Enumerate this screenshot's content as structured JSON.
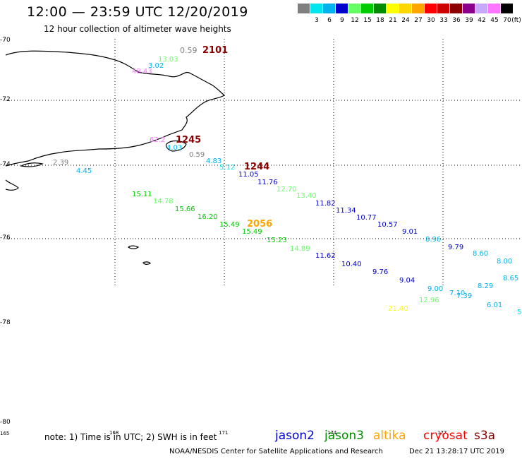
{
  "title": "12:00 — 23:59 UTC 12/20/2019",
  "subtitle": "12 hour collection of altimeter wave heights",
  "scale": {
    "unit": "(ft)",
    "bins": [
      {
        "label": "",
        "color": "#808080"
      },
      {
        "label": "3",
        "color": "#00e5ee"
      },
      {
        "label": "6",
        "color": "#00b2ee"
      },
      {
        "label": "9",
        "color": "#0000cd"
      },
      {
        "label": "12",
        "color": "#66ff66"
      },
      {
        "label": "15",
        "color": "#00cd00"
      },
      {
        "label": "18",
        "color": "#008b00"
      },
      {
        "label": "21",
        "color": "#ffff00"
      },
      {
        "label": "24",
        "color": "#ffd700"
      },
      {
        "label": "27",
        "color": "#ffa500"
      },
      {
        "label": "30",
        "color": "#ff0000"
      },
      {
        "label": "33",
        "color": "#cd0000"
      },
      {
        "label": "36",
        "color": "#8b0000"
      },
      {
        "label": "39",
        "color": "#8b008b"
      },
      {
        "label": "42",
        "color": "#c8a8f8"
      },
      {
        "label": "45",
        "color": "#ff77ff"
      },
      {
        "label": "70",
        "color": "#000000"
      }
    ]
  },
  "axes": {
    "lat_labels": [
      "-70",
      "-72",
      "-74",
      "-76",
      "-78",
      "-80"
    ],
    "lon_labels": [
      "165",
      "168",
      "171",
      "174",
      "177"
    ]
  },
  "observations": [
    {
      "text": "0.59",
      "color": "#808080"
    },
    {
      "text": "2101",
      "color": "#8b0000"
    },
    {
      "text": "13.03",
      "color": "#66ff66"
    },
    {
      "text": "3.02",
      "color": "#00b2ee"
    },
    {
      "text": "48.43",
      "color": "#ff77ff"
    },
    {
      "text": "62.2",
      "color": "#ff77ff"
    },
    {
      "text": "1245",
      "color": "#8b0000"
    },
    {
      "text": "4.03",
      "color": "#00b2ee"
    },
    {
      "text": "0.59",
      "color": "#808080"
    },
    {
      "text": "2.39",
      "color": "#808080"
    },
    {
      "text": "4.45",
      "color": "#00b2ee"
    },
    {
      "text": "4.83",
      "color": "#00b2ee"
    },
    {
      "text": "5.12",
      "color": "#00e5ee"
    },
    {
      "text": "1244",
      "color": "#8b0000"
    },
    {
      "text": "11.05",
      "color": "#0000cd"
    },
    {
      "text": "11.76",
      "color": "#0000cd"
    },
    {
      "text": "12.70",
      "color": "#66ff66"
    },
    {
      "text": "13.40",
      "color": "#66ff66"
    },
    {
      "text": "11.82",
      "color": "#0000cd"
    },
    {
      "text": "11.34",
      "color": "#0000cd"
    },
    {
      "text": "10.77",
      "color": "#0000cd"
    },
    {
      "text": "10.57",
      "color": "#0000cd"
    },
    {
      "text": "9.01",
      "color": "#0000cd"
    },
    {
      "text": "8.96",
      "color": "#00b2ee"
    },
    {
      "text": "9.79",
      "color": "#0000cd"
    },
    {
      "text": "8.60",
      "color": "#00b2ee"
    },
    {
      "text": "8.00",
      "color": "#00b2ee"
    },
    {
      "text": "8.65",
      "color": "#00b2ee"
    },
    {
      "text": "15.11",
      "color": "#00cd00"
    },
    {
      "text": "14.78",
      "color": "#66ff66"
    },
    {
      "text": "15.66",
      "color": "#00cd00"
    },
    {
      "text": "16.20",
      "color": "#00cd00"
    },
    {
      "text": "15.49",
      "color": "#00cd00"
    },
    {
      "text": "2056",
      "color": "#ffa500"
    },
    {
      "text": "15.49",
      "color": "#00cd00"
    },
    {
      "text": "15.23",
      "color": "#00cd00"
    },
    {
      "text": "14.89",
      "color": "#66ff66"
    },
    {
      "text": "11.62",
      "color": "#0000cd"
    },
    {
      "text": "10.40",
      "color": "#0000cd"
    },
    {
      "text": "9.76",
      "color": "#0000cd"
    },
    {
      "text": "9.04",
      "color": "#0000cd"
    },
    {
      "text": "9.00",
      "color": "#00b2ee"
    },
    {
      "text": "7.10",
      "color": "#00b2ee"
    },
    {
      "text": "7.39",
      "color": "#00b2ee"
    },
    {
      "text": "8.29",
      "color": "#00b2ee"
    },
    {
      "text": "6.01",
      "color": "#00b2ee"
    },
    {
      "text": "5",
      "color": "#00e5ee"
    },
    {
      "text": "12.96",
      "color": "#66ff66"
    },
    {
      "text": "21.40",
      "color": "#ffff00"
    }
  ],
  "footer": {
    "note": "note: 1) Time is in UTC; 2) SWH is in feet",
    "satellites": [
      {
        "name": "jason2",
        "color": "#0000cd"
      },
      {
        "name": "jason3",
        "color": "#008b00"
      },
      {
        "name": "altika",
        "color": "#ffa500"
      },
      {
        "name": "cryosat",
        "color": "#ff0000"
      },
      {
        "name": "s3a",
        "color": "#8b0000"
      }
    ],
    "credit": "NOAA/NESDIS Center for Satellite Applications and Research",
    "timestamp": "Dec 21 13:28:17 UTC 2019"
  }
}
